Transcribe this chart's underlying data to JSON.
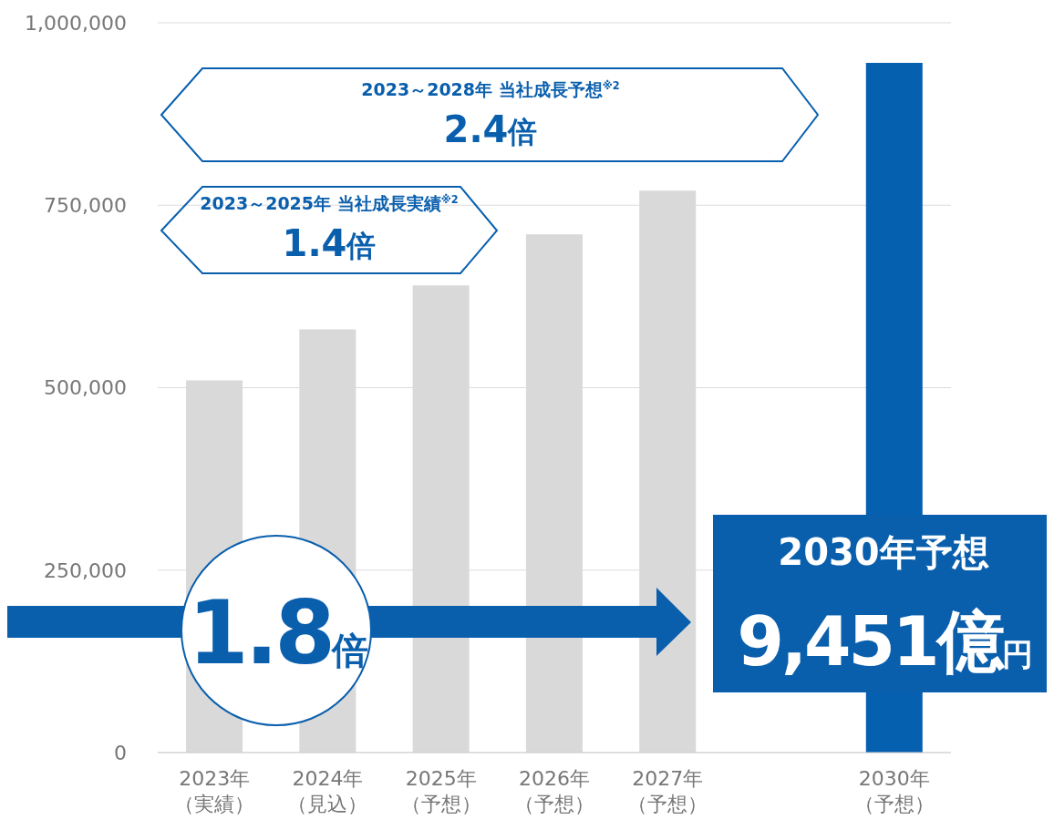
{
  "chart_data": {
    "type": "bar",
    "categories": [
      "2023年（実績）",
      "2024年（見込）",
      "2025年（予想）",
      "2026年（予想）",
      "2027年（予想）",
      null,
      "2030年（予想）"
    ],
    "values": [
      510000,
      580000,
      640000,
      710000,
      770000,
      null,
      945000
    ],
    "colors": [
      "#d9d9d9",
      "#d9d9d9",
      "#d9d9d9",
      "#d9d9d9",
      "#d9d9d9",
      "#d9d9d9",
      "#0660b0"
    ],
    "ylim": [
      0,
      1000000
    ],
    "yticks": [
      0,
      {
        "value": 250000,
        "label": "250,000"
      },
      {
        "value": 500000,
        "label": "500,000"
      },
      {
        "value": 750000,
        "label": "750,000"
      },
      {
        "value": 1000000,
        "label": "1,000,000"
      }
    ],
    "grid": "y",
    "legend": false,
    "annotations": [
      "2023～2028年 当社成長予想$^{※2}$",
      "2.4倍",
      "2023～2025年 当社成長実績$^{※2}$",
      "1.4倍",
      "1.8倍",
      "2030年予想",
      "9,451億円"
    ]
  }
}
